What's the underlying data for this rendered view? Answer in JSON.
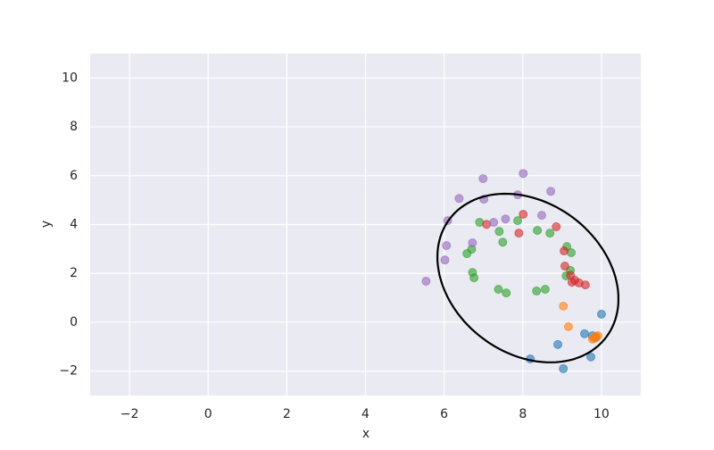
{
  "chart_data": {
    "type": "scatter",
    "x_label": "x",
    "y_label": "y",
    "xlim": [
      -3,
      11
    ],
    "ylim": [
      -3,
      11
    ],
    "xticks": [
      {
        "value": -2,
        "label": "−2"
      },
      0,
      2,
      4,
      6,
      8,
      10
    ],
    "yticks": [
      {
        "value": -2,
        "label": "−2"
      },
      0,
      2,
      4,
      6,
      8,
      10
    ],
    "grid": true,
    "series": [
      {
        "color": "#1f77b4",
        "x": [
          10.0,
          8.89,
          8.19,
          9.03,
          9.73,
          9.57,
          9.77,
          9.86
        ],
        "y": [
          0.33,
          -0.91,
          -1.5,
          -1.9,
          -1.42,
          -0.47,
          -0.55,
          -0.62
        ]
      },
      {
        "color": "#ff7f0e",
        "x": [
          9.82,
          9.86,
          9.77,
          9.91,
          9.03,
          9.16
        ],
        "y": [
          -0.66,
          -0.58,
          -0.69,
          -0.55,
          0.66,
          -0.18
        ]
      },
      {
        "color": "#2ca02c",
        "x": [
          6.9,
          6.7,
          6.72,
          7.49,
          7.87,
          7.4,
          8.69,
          8.37,
          9.12,
          9.23,
          9.1,
          9.21,
          8.57,
          8.35,
          7.38,
          7.58,
          6.58,
          6.76
        ],
        "y": [
          4.09,
          2.99,
          2.04,
          3.28,
          4.16,
          3.72,
          3.65,
          3.76,
          3.1,
          2.85,
          1.9,
          2.12,
          1.35,
          1.28,
          1.35,
          1.2,
          2.81,
          1.82
        ]
      },
      {
        "color": "#d62728",
        "x": [
          7.08,
          8.01,
          7.9,
          8.85,
          9.05,
          9.07,
          9.21,
          9.32,
          9.43,
          9.59,
          9.25
        ],
        "y": [
          4.01,
          4.42,
          3.65,
          3.91,
          2.92,
          2.3,
          1.93,
          1.72,
          1.61,
          1.53,
          1.64
        ]
      },
      {
        "color": "#9467bd",
        "x": [
          8.01,
          6.99,
          7.87,
          8.71,
          6.38,
          7.01,
          7.56,
          7.26,
          8.48,
          6.09,
          6.06,
          6.72,
          6.02,
          5.54
        ],
        "y": [
          6.09,
          5.88,
          5.22,
          5.36,
          5.07,
          5.04,
          4.23,
          4.09,
          4.38,
          4.16,
          3.14,
          3.25,
          2.55,
          1.68
        ]
      }
    ],
    "ellipse": {
      "center": [
        8.13,
        1.81
      ],
      "width": 7.06,
      "height": 4.36,
      "angle": -74.6,
      "color": "#000000"
    }
  }
}
